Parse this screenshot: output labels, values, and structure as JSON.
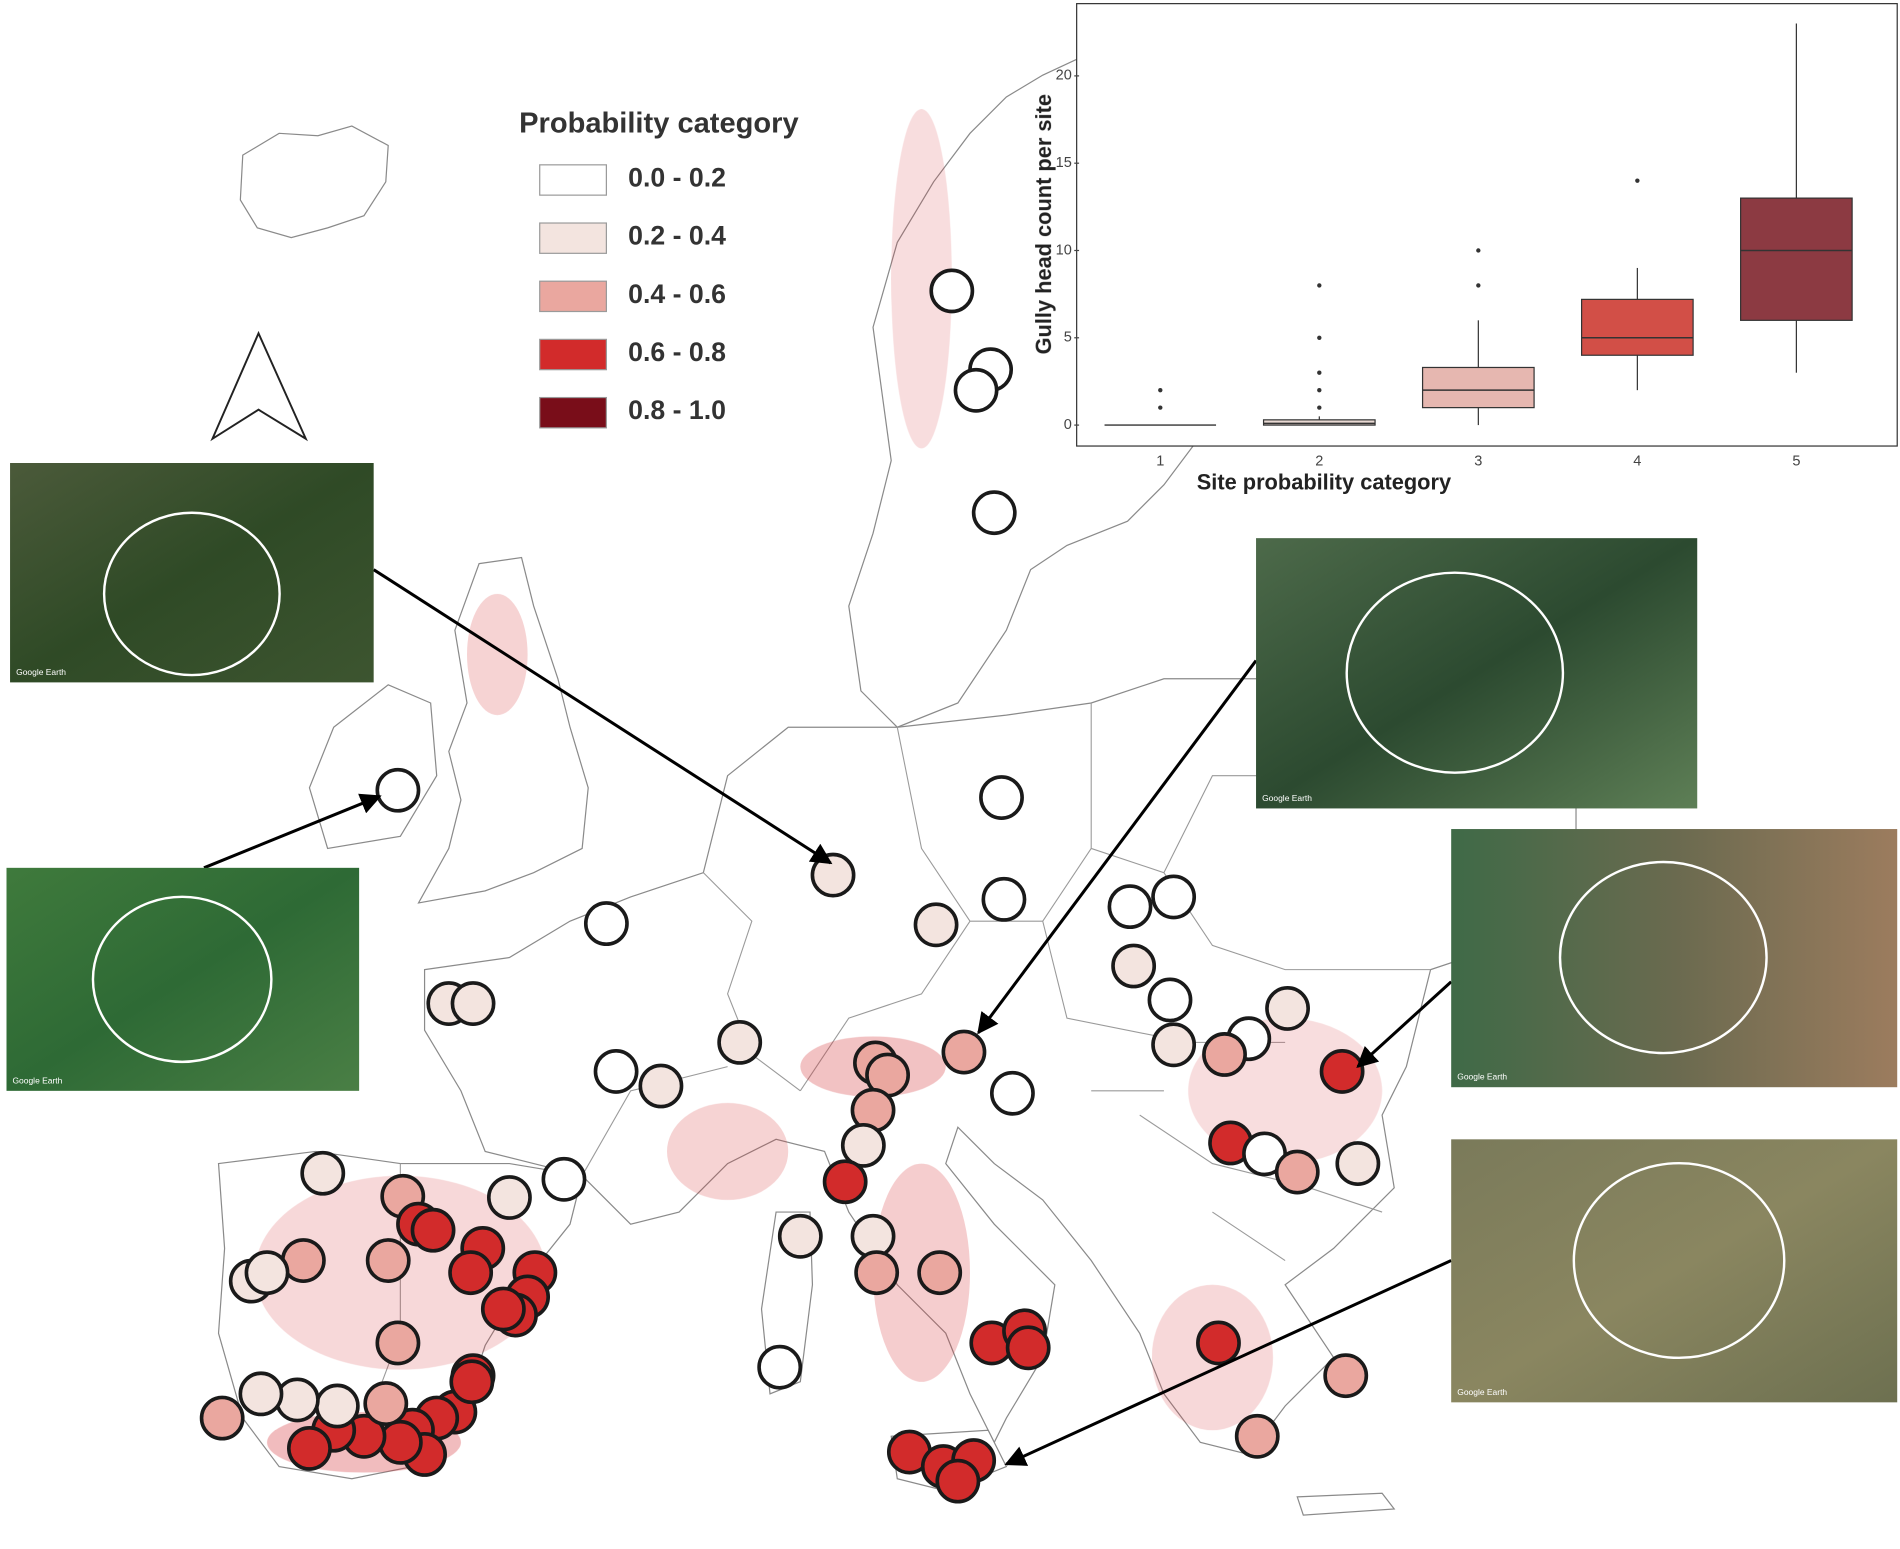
{
  "legend": {
    "title": "Probability category",
    "items": [
      {
        "label": "0.0 - 0.2",
        "color": "#ffffff"
      },
      {
        "label": "0.2 - 0.4",
        "color": "#f3e4df"
      },
      {
        "label": "0.4 - 0.6",
        "color": "#eaa79f"
      },
      {
        "label": "0.6 - 0.8",
        "color": "#d22b2b"
      },
      {
        "label": "0.8 - 1.0",
        "color": "#790d19"
      }
    ]
  },
  "inset_label": "Google Earth",
  "chart_data": {
    "type": "box",
    "x_label": "Site probability category",
    "y_label": "Gully head count per site",
    "categories": [
      "1",
      "2",
      "3",
      "4",
      "5"
    ],
    "boxes": [
      {
        "whisker_low": 0,
        "q1": 0,
        "median": 0,
        "q3": 0,
        "whisker_high": 0,
        "outliers": [
          1,
          2
        ],
        "color": "#ffffff"
      },
      {
        "whisker_low": 0,
        "q1": 0,
        "median": 0.1,
        "q3": 0.3,
        "whisker_high": 0.5,
        "outliers": [
          1,
          2,
          3,
          5,
          8
        ],
        "color": "#e9d9d3"
      },
      {
        "whisker_low": 0,
        "q1": 1,
        "median": 2,
        "q3": 3.3,
        "whisker_high": 6,
        "outliers": [
          8,
          10
        ],
        "color": "#e6b7b0"
      },
      {
        "whisker_low": 2,
        "q1": 4,
        "median": 5,
        "q3": 7.2,
        "whisker_high": 9,
        "outliers": [
          14
        ],
        "color": "#d24f47"
      },
      {
        "whisker_low": 3,
        "q1": 6,
        "median": 10,
        "q3": 13,
        "whisker_high": 23,
        "outliers": [],
        "color": "#8c3a42"
      }
    ],
    "ylim": [
      -1.2,
      24
    ],
    "yticks": [
      0,
      5,
      10,
      15,
      20
    ]
  }
}
